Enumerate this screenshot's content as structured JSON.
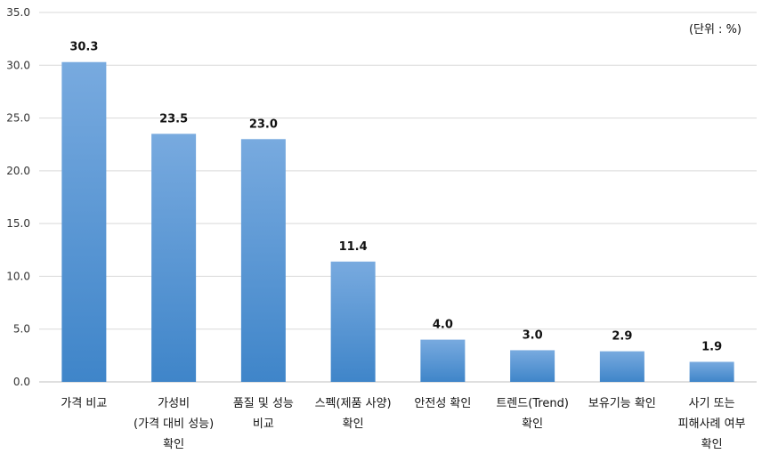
{
  "unit_note": "(단위 : %)",
  "chart_data": {
    "type": "bar",
    "title": "",
    "xlabel": "",
    "ylabel": "",
    "ylim": [
      0,
      35
    ],
    "yticks": [
      "0.0",
      "5.0",
      "10.0",
      "15.0",
      "20.0",
      "25.0",
      "30.0",
      "35.0"
    ],
    "grid": true,
    "categories": [
      [
        "가격 비교"
      ],
      [
        "가성비",
        "(가격 대비 성능)",
        "확인"
      ],
      [
        "품질 및 성능",
        "비교"
      ],
      [
        "스펙(제품 사양)",
        "확인"
      ],
      [
        "안전성 확인"
      ],
      [
        "트렌드(Trend)",
        "확인"
      ],
      [
        "보유기능 확인"
      ],
      [
        "사기 또는",
        "피해사례 여부",
        "확인"
      ]
    ],
    "values": [
      30.3,
      23.5,
      23.0,
      11.4,
      4.0,
      3.0,
      2.9,
      1.9
    ],
    "data_labels": [
      "30.3",
      "23.5",
      "23.0",
      "11.4",
      "4.0",
      "3.0",
      "2.9",
      "1.9"
    ],
    "bar_color_top": "#78aadf",
    "bar_color_bottom": "#3f85c9"
  }
}
